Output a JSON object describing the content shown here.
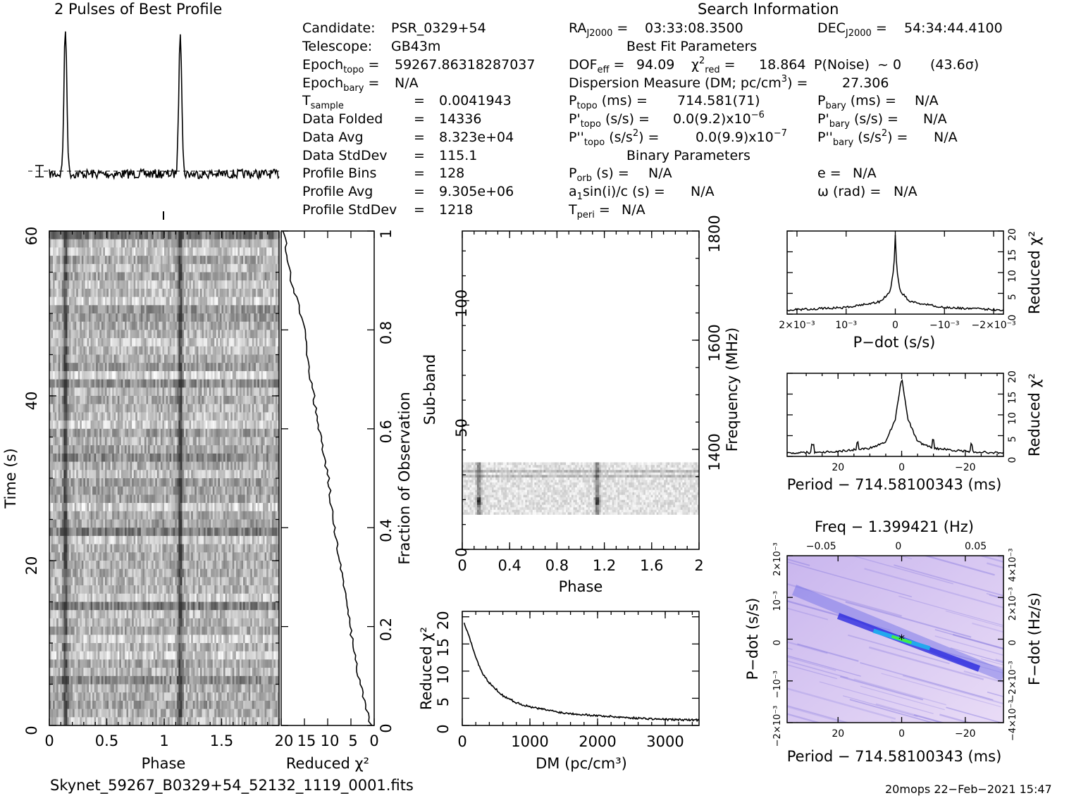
{
  "header": {
    "profile_title": "2 Pulses of Best Profile",
    "search_title": "Search Information",
    "best_fit_title": "Best Fit Parameters",
    "binary_title": "Binary Parameters"
  },
  "info": {
    "candidate_label": "Candidate:",
    "candidate": "PSR_0329+54",
    "telescope_label": "Telescope:",
    "telescope": "GB43m",
    "epoch_topo": "59267.86318287037",
    "epoch_bary": "N/A",
    "t_sample": "0.0041943",
    "data_folded": "14336",
    "data_avg": "8.323e+04",
    "data_stddev": "115.1",
    "profile_bins": "128",
    "profile_avg": "9.305e+06",
    "profile_stddev": "1218",
    "ra": "03:33:08.3500",
    "dec": "54:34:44.4100",
    "dof_eff": "94.09",
    "chi2_red": "18.864",
    "p_noise": "~ 0",
    "sigma": "(43.6σ)",
    "dm": "27.306",
    "p_topo": "714.581(71)",
    "pd_topo": "0.0(9.2)x10",
    "pd_topo_exp": "−6",
    "pdd_topo": "0.0(9.9)x10",
    "pdd_topo_exp": "−7",
    "p_bary": "N/A",
    "pd_bary": "N/A",
    "pdd_bary": "N/A",
    "p_orb": "N/A",
    "a1sini": "N/A",
    "t_peri": "N/A",
    "e": "N/A",
    "omega": "N/A"
  },
  "footer": {
    "filename": "Skynet_59267_B0329+54_52132_1119_0001.fits",
    "stamp": "20mops 22−Feb−2021 15:47"
  },
  "colors": {
    "ink": "#000000",
    "grey_dark": "#1e1e1e",
    "blue": "#2222dd",
    "green": "#44ee44"
  },
  "chart_data": [
    {
      "type": "line",
      "name": "profile",
      "title": "2 Pulses of Best Profile",
      "phase_range": [
        0,
        2
      ],
      "peak_phases": [
        0.14,
        1.14
      ]
    },
    {
      "type": "heatmap",
      "name": "time-phase",
      "xlabel": "Phase",
      "ylabel": "Time (s)",
      "xlim": [
        0,
        2
      ],
      "ylim": [
        0,
        60
      ],
      "x_ticks": [
        "0",
        "0.5",
        "1",
        "1.5"
      ],
      "y_ticks": [
        "0",
        "20",
        "40",
        "60"
      ]
    },
    {
      "type": "line",
      "name": "reduced-chi2-vs-fraction",
      "xlabel": "Reduced χ²",
      "ylabel": "Fraction of Observation",
      "xlim": [
        20,
        0
      ],
      "ylim": [
        0,
        1
      ],
      "x_ticks": [
        "20",
        "15",
        "10",
        "5",
        "0"
      ],
      "y_ticks": [
        "0.2",
        "0.4",
        "0.6",
        "0.8",
        "1"
      ],
      "fraction": [
        0,
        0.05,
        0.1,
        0.2,
        0.3,
        0.4,
        0.5,
        0.6,
        0.7,
        0.8,
        0.9,
        0.95,
        1.0
      ],
      "chi2": [
        0.8,
        2.1,
        3.5,
        5.2,
        6.9,
        8.6,
        9.9,
        11.9,
        13.6,
        15.0,
        17.8,
        18.8,
        19.4
      ]
    },
    {
      "type": "heatmap",
      "name": "subband-phase",
      "xlabel": "Phase",
      "ylabel": "Sub-band",
      "y2label": "Frequency (MHz)",
      "xlim": [
        0,
        2
      ],
      "ylim": [
        0,
        128
      ],
      "x_ticks": [
        "0",
        "0.4",
        "0.8",
        "1.2",
        "1.6",
        "2"
      ],
      "y_ticks": [
        "0",
        "50",
        "100"
      ],
      "y2_ticks": [
        "1400",
        "1600",
        "1800"
      ],
      "filled_subbands": [
        14,
        35
      ]
    },
    {
      "type": "line",
      "name": "dm-curve",
      "xlabel": "DM (pc/cm³)",
      "ylabel": "Reduced χ²",
      "xlim": [
        0,
        3500
      ],
      "ylim": [
        0,
        21
      ],
      "x_ticks": [
        "0",
        "1000",
        "2000",
        "3000"
      ],
      "y_ticks": [
        "0",
        "5",
        "10",
        "15",
        "20"
      ],
      "x": [
        27,
        100,
        200,
        300,
        400,
        600,
        800,
        1000,
        1500,
        2000,
        2500,
        3000,
        3500
      ],
      "y": [
        18.9,
        16.5,
        12.5,
        9.5,
        7.8,
        5.5,
        4.2,
        3.4,
        2.3,
        1.8,
        1.4,
        1.1,
        1.0
      ]
    },
    {
      "type": "line",
      "name": "pdot-curve",
      "xlabel": "P−dot (s/s)",
      "ylabel": "Reduced χ²",
      "xlim": [
        0.0022,
        -0.0022
      ],
      "ylim": [
        0,
        20
      ],
      "x_ticks": [
        "2×10⁻³",
        "10⁻³",
        "0",
        "−10⁻³",
        "−2×10⁻³"
      ],
      "y_ticks": [
        "0",
        "5",
        "10",
        "15",
        "20"
      ],
      "x": [
        0.0022,
        0.001,
        0.0003,
        0.0001,
        3e-05,
        0,
        -3e-05,
        -0.0001,
        -0.0003,
        -0.001,
        -0.0022
      ],
      "y": [
        1.0,
        1.6,
        3.0,
        5.5,
        11.0,
        18.9,
        11.0,
        5.5,
        3.0,
        1.6,
        1.0
      ]
    },
    {
      "type": "line",
      "name": "period-curve",
      "xlabel": "Period − 714.58100343 (ms)",
      "ylabel": "Reduced χ²",
      "xlim": [
        36,
        -32
      ],
      "ylim": [
        0,
        20
      ],
      "x_ticks": [
        "20",
        "0",
        "−20"
      ],
      "y_ticks": [
        "0",
        "5",
        "10",
        "15",
        "20"
      ],
      "x": [
        36,
        20,
        10,
        5,
        2,
        0,
        -2,
        -5,
        -10,
        -20,
        -32
      ],
      "y": [
        0.8,
        1.2,
        2.0,
        3.5,
        9.0,
        18.9,
        9.0,
        3.5,
        2.0,
        1.2,
        0.8
      ]
    },
    {
      "type": "heatmap",
      "name": "p-pdot-plane",
      "xlabel": "Period − 714.58100343 (ms)",
      "ylabel": "P−dot (s/s)",
      "x2label": "Freq − 1.399421 (Hz)",
      "y2label": "F−dot (Hz/s)",
      "xlim": [
        36,
        -32
      ],
      "ylim": [
        -0.002,
        0.002
      ],
      "x_ticks": [
        "20",
        "0",
        "−20"
      ],
      "x2_ticks": [
        "−0.05",
        "0",
        "0.05"
      ],
      "y_ticks": [
        "2×10⁻³",
        "10⁻³",
        "0",
        "−10⁻³",
        "−2×10⁻³"
      ],
      "y2_ticks": [
        "−4×10⁻³",
        "−2×10⁻³",
        "0",
        "2×10⁻³",
        "4×10⁻³"
      ],
      "best_fit": [
        0,
        0
      ]
    }
  ]
}
